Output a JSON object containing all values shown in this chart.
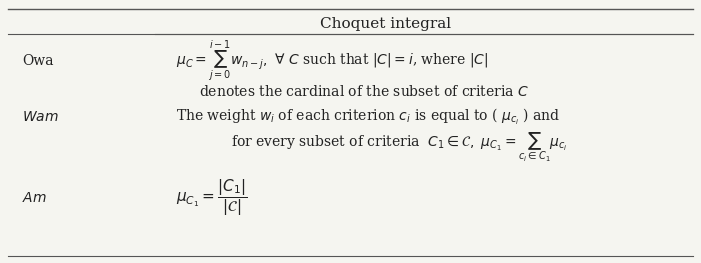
{
  "title": "Choquet integral",
  "rows": [
    {
      "label": "Owa",
      "label_italic": false,
      "content_line1": "$\\mu_C = \\sum_{j=0}^{i-1} w_{n-j},\\ \\forall\\ C$ such that $|C| = i$, where $|C|$",
      "content_line2": "denotes the cardinal of the subset of criteria $C$"
    },
    {
      "label": "Wam",
      "label_italic": true,
      "content_line1": "The weight $w_i$ of each criterion $c_i$ is equal to ( $\\mu_{c_i}$ ) and",
      "content_line2": "for every subset of criteria  $C_1 \\in \\mathcal{C},\\ \\mu_{C_1} = \\sum_{c_i \\in C_1} \\mu_{c_i}$"
    },
    {
      "label": "Am",
      "label_italic": true,
      "content_line1": "$\\mu_{C_1} = \\dfrac{|C_1|}{|\\mathcal{C}|}$",
      "content_line2": ""
    }
  ],
  "bg_color": "#f5f5f0",
  "line_color": "#555555",
  "text_color": "#222222",
  "font_size": 10
}
